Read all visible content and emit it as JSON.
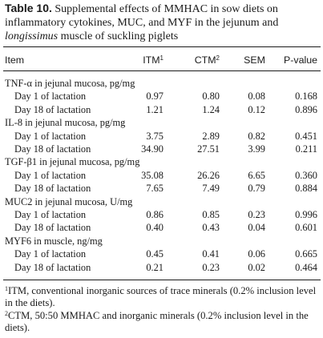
{
  "caption": {
    "label": "Table 10.",
    "text_before_italic": " Supplemental effects of MMHAC in sow diets on inflammatory cytokines, MUC, and MYF in the jejunum and ",
    "italic": "longissimus",
    "text_after_italic": " muscle of suckling piglets"
  },
  "columns": [
    {
      "key": "item",
      "label": "Item",
      "sup": ""
    },
    {
      "key": "itm",
      "label": "ITM",
      "sup": "1"
    },
    {
      "key": "ctm",
      "label": "CTM",
      "sup": "2"
    },
    {
      "key": "sem",
      "label": "SEM",
      "sup": ""
    },
    {
      "key": "p",
      "label": "P-value",
      "sup": ""
    }
  ],
  "groups": [
    {
      "title": "TNF-α in jejunal mucosa, pg/mg",
      "rows": [
        {
          "label": "Day 1 of lactation",
          "itm": "0.97",
          "ctm": "0.80",
          "sem": "0.08",
          "p": "0.168"
        },
        {
          "label": "Day 18 of lactation",
          "itm": "1.21",
          "ctm": "1.24",
          "sem": "0.12",
          "p": "0.896"
        }
      ]
    },
    {
      "title": "IL-8 in jejunal mucosa, pg/mg",
      "rows": [
        {
          "label": "Day 1 of lactation",
          "itm": "3.75",
          "ctm": "2.89",
          "sem": "0.82",
          "p": "0.451"
        },
        {
          "label": "Day 18 of lactation",
          "itm": "34.90",
          "ctm": "27.51",
          "sem": "3.99",
          "p": "0.211"
        }
      ]
    },
    {
      "title": "TGF-β1 in jejunal mucosa, pg/mg",
      "rows": [
        {
          "label": "Day 1 of lactation",
          "itm": "35.08",
          "ctm": "26.26",
          "sem": "6.65",
          "p": "0.360"
        },
        {
          "label": "Day 18 of lactation",
          "itm": "7.65",
          "ctm": "7.49",
          "sem": "0.79",
          "p": "0.884"
        }
      ]
    },
    {
      "title": "MUC2 in jejunal mucosa, U/mg",
      "rows": [
        {
          "label": "Day 1 of lactation",
          "itm": "0.86",
          "ctm": "0.85",
          "sem": "0.23",
          "p": "0.996"
        },
        {
          "label": "Day 18 of lactation",
          "itm": "0.40",
          "ctm": "0.43",
          "sem": "0.04",
          "p": "0.601"
        }
      ]
    },
    {
      "title": "MYF6 in muscle, ng/mg",
      "rows": [
        {
          "label": "Day 1 of lactation",
          "itm": "0.45",
          "ctm": "0.41",
          "sem": "0.06",
          "p": "0.665"
        },
        {
          "label": "Day 18 of lactation",
          "itm": "0.21",
          "ctm": "0.23",
          "sem": "0.02",
          "p": "0.464"
        }
      ]
    }
  ],
  "footnotes": [
    {
      "sup": "1",
      "text": "ITM, conventional inorganic sources of trace minerals (0.2% inclusion level in the diets)."
    },
    {
      "sup": "2",
      "text": "CTM, 50:50 MMHAC and inorganic minerals (0.2% inclusion level in the diets)."
    }
  ]
}
